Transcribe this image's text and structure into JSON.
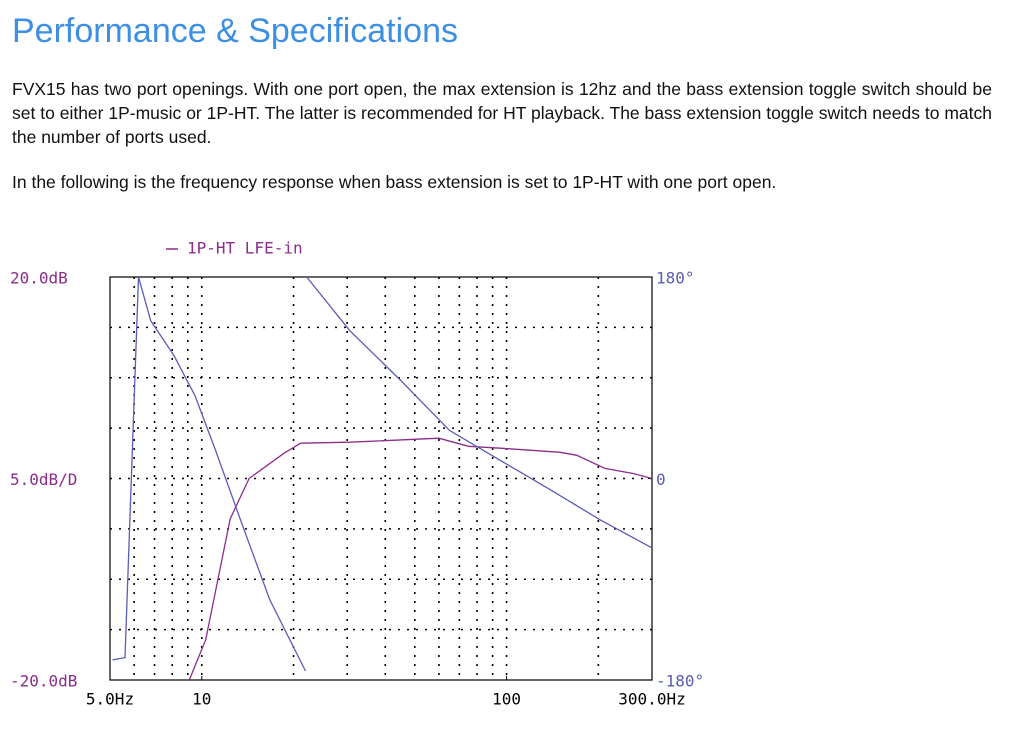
{
  "header": {
    "title": "Performance & Specifications"
  },
  "paragraphs": [
    "FVX15 has two port openings. With one port open, the max extension is 12hz and the bass extension toggle switch should be set to either 1P-music or 1P-HT. The latter is recommended for HT playback. The bass extension toggle switch needs to match the number of ports used.",
    "In the following is the frequency response when bass extension is set to 1P-HT with one port open."
  ],
  "chart_data": {
    "type": "line",
    "xscale": "log",
    "grid": true,
    "xlim": [
      5,
      300
    ],
    "xticks": [
      {
        "value": 5,
        "label": "5.0Hz"
      },
      10,
      100,
      {
        "value": 300,
        "label": "300.0Hz"
      }
    ],
    "ylim": [
      -20,
      20
    ],
    "yticks": [
      {
        "value": -20,
        "label": "-20.0dB"
      },
      {
        "value": 20,
        "label": "20.0dB"
      }
    ],
    "y_division": {
      "value": 5,
      "label": "5.0dB/D"
    },
    "y2lim": [
      -180,
      180
    ],
    "y2ticks": [
      {
        "value": -180,
        "label": "-180°"
      },
      0,
      {
        "value": 180,
        "label": "180°"
      }
    ],
    "series": [
      {
        "name": "1P-HT LFE-in",
        "color": "#8b2d8b",
        "x": [
          9.1,
          10.3,
          12.4,
          14.3,
          18.6,
          21.1,
          30.6,
          60,
          75,
          97,
          150,
          170,
          210,
          260,
          300
        ],
        "values": [
          -20,
          -16,
          -4,
          0,
          2.5,
          3.5,
          3.6,
          4,
          3.2,
          3,
          2.6,
          2.3,
          1,
          0.5,
          0
        ]
      },
      {
        "color": "#5b5bb8",
        "axis": "y2",
        "x": [
          5.1,
          5.6,
          6.2,
          6.8,
          8.1,
          9.5,
          11.1,
          13.4,
          16.7,
          21.9,
          22.0,
          22.1,
          30.6,
          44.8,
          65,
          97,
          139,
          203,
          300
        ],
        "values": [
          -162,
          -160,
          180,
          141,
          110,
          74,
          25,
          -37,
          -108,
          -172,
          null,
          180,
          132,
          88,
          43,
          15,
          -10,
          -37,
          -62
        ]
      }
    ]
  }
}
